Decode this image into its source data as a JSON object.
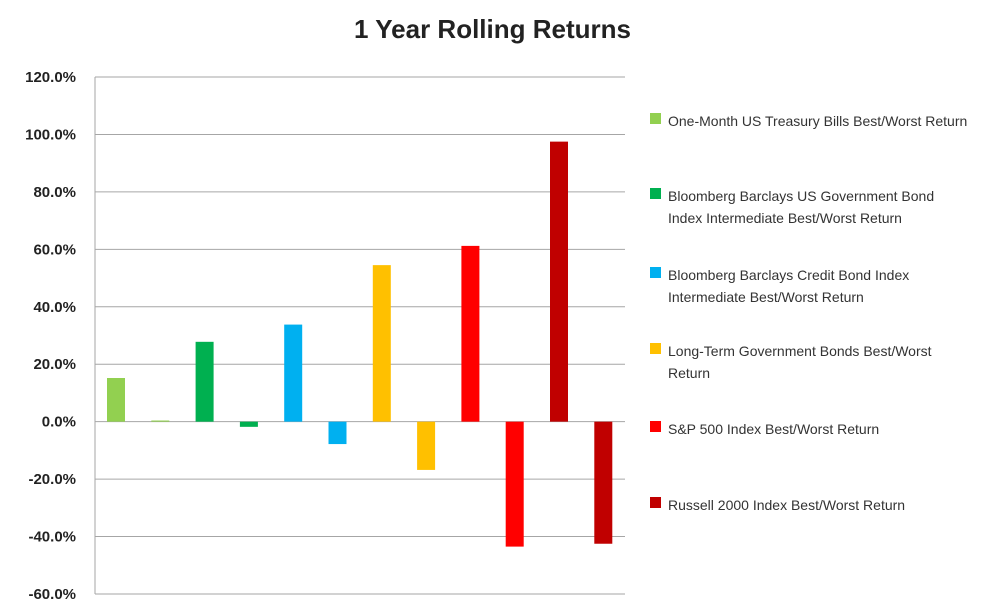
{
  "chart_data": {
    "type": "bar",
    "title": "1 Year Rolling Returns",
    "ylim": [
      -60,
      120
    ],
    "yticks": [
      "120.0%",
      "100.0%",
      "80.0%",
      "60.0%",
      "40.0%",
      "20.0%",
      "0.0%",
      "-20.0%",
      "-40.0%",
      "-60.0%"
    ],
    "grid": true,
    "legend_position": "right",
    "series": [
      {
        "name": "One-Month US Treasury Bills Best/Worst Return",
        "color": "#92d050",
        "values": [
          15.2,
          0.4
        ]
      },
      {
        "name": "Bloomberg Barclays US Government Bond Index Intermediate Best/Worst Return",
        "color": "#00b050",
        "values": [
          27.8,
          -1.8
        ]
      },
      {
        "name": "Bloomberg Barclays Credit Bond Index Intermediate Best/Worst Return",
        "color": "#00b0f0",
        "values": [
          33.8,
          -7.8
        ]
      },
      {
        "name": "Long-Term Government Bonds Best/Worst Return",
        "color": "#ffc000",
        "values": [
          54.5,
          -16.8
        ]
      },
      {
        "name": "S&P 500 Index Best/Worst Return",
        "color": "#ff0000",
        "values": [
          61.2,
          -43.5
        ]
      },
      {
        "name": "Russell 2000 Index Best/Worst Return",
        "color": "#c00000",
        "values": [
          97.5,
          -42.5
        ]
      }
    ]
  }
}
